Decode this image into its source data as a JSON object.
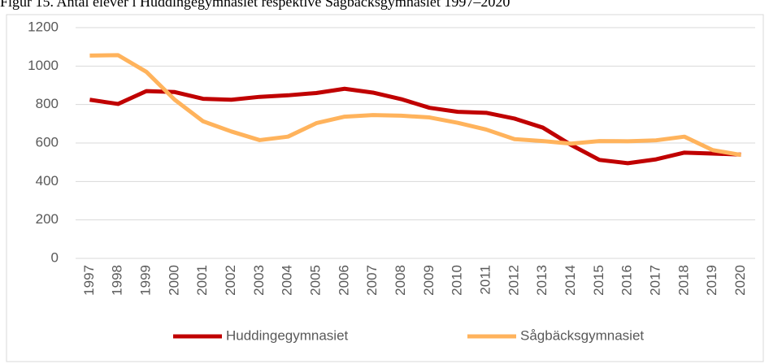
{
  "chart_data": {
    "type": "line",
    "title": "Figur 15. Antal elever i Huddingegymnasiet respektive Sågbäcksgymnasiet 1997–2020",
    "categories": [
      "1997",
      "1998",
      "1999",
      "2000",
      "2001",
      "2002",
      "2003",
      "2004",
      "2005",
      "2006",
      "2007",
      "2008",
      "2009",
      "2010",
      "2011",
      "2012",
      "2013",
      "2014",
      "2015",
      "2016",
      "2017",
      "2018",
      "2019",
      "2020"
    ],
    "series": [
      {
        "name": "Huddingegymnasiet",
        "color": "#c00000",
        "values": [
          825,
          803,
          870,
          865,
          830,
          825,
          840,
          848,
          860,
          882,
          862,
          828,
          783,
          762,
          757,
          727,
          680,
          590,
          512,
          495,
          515,
          550,
          545,
          540
        ]
      },
      {
        "name": "Sågbäcksgymnasiet",
        "color": "#ffb35c",
        "values": [
          1055,
          1057,
          970,
          825,
          713,
          660,
          615,
          633,
          703,
          737,
          745,
          742,
          733,
          705,
          670,
          620,
          610,
          597,
          610,
          609,
          614,
          633,
          563,
          538
        ]
      }
    ],
    "ylim": [
      0,
      1200
    ],
    "yticks": [
      0,
      200,
      400,
      600,
      800,
      1000,
      1200
    ],
    "grid": true,
    "legend": "bottom"
  }
}
